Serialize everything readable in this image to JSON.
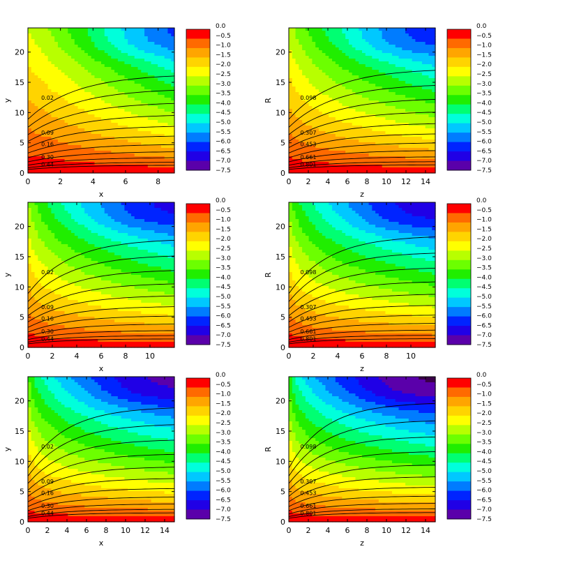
{
  "colorbar": {
    "labels": [
      "0.0",
      "−0.5",
      "−1.0",
      "−1.5",
      "−2.0",
      "−2.5",
      "−3.0",
      "−3.5",
      "−4.0",
      "−4.5",
      "−5.0",
      "−5.5",
      "−6.0",
      "−6.5",
      "−7.0",
      "−7.5"
    ],
    "colors": [
      "#ff0000",
      "#ff6a00",
      "#ffa500",
      "#ffd400",
      "#ffff00",
      "#b8ff00",
      "#6cff00",
      "#20ee00",
      "#00ff72",
      "#00ffdb",
      "#00c8ff",
      "#007cff",
      "#0024ff",
      "#2000e6",
      "#5a00aa",
      "#3a0048"
    ]
  },
  "chart_data": [
    {
      "type": "heatmap",
      "xlabel": "x",
      "ylabel": "y",
      "xlim": [
        0,
        9
      ],
      "ylim": [
        0,
        24
      ],
      "xticks": [
        "0",
        "2",
        "4",
        "6",
        "8"
      ],
      "yticks": [
        "0",
        "5",
        "10",
        "15",
        "20"
      ],
      "contour_labels": [
        "0.02",
        "0.09",
        "0.16",
        "0.30",
        "0.44"
      ],
      "field_min": -6.0
    },
    {
      "type": "heatmap",
      "xlabel": "z",
      "ylabel": "R",
      "xlim": [
        0,
        15
      ],
      "ylim": [
        0,
        24
      ],
      "xticks": [
        "0",
        "2",
        "4",
        "6",
        "8",
        "10",
        "12",
        "14"
      ],
      "yticks": [
        "0",
        "5",
        "10",
        "15",
        "20"
      ],
      "contour_labels": [
        "0.098",
        "0.307",
        "0.453",
        "0.661",
        "0.801"
      ],
      "field_min": -6.3
    },
    {
      "type": "heatmap",
      "xlabel": "x",
      "ylabel": "y",
      "xlim": [
        0,
        12
      ],
      "ylim": [
        0,
        24
      ],
      "xticks": [
        "0",
        "2",
        "4",
        "6",
        "8",
        "10"
      ],
      "yticks": [
        "0",
        "5",
        "10",
        "15",
        "20"
      ],
      "contour_labels": [
        "0.02",
        "0.09",
        "0.16",
        "0.30",
        "0.44"
      ],
      "field_min": -6.6
    },
    {
      "type": "heatmap",
      "xlabel": "z",
      "ylabel": "R",
      "xlim": [
        0,
        12
      ],
      "ylim": [
        0,
        24
      ],
      "xticks": [
        "0",
        "2",
        "4",
        "6",
        "8",
        "10"
      ],
      "yticks": [
        "0",
        "5",
        "10",
        "15",
        "20"
      ],
      "contour_labels": [
        "0.098",
        "0.307",
        "0.453",
        "0.661",
        "0.801"
      ],
      "field_min": -6.8
    },
    {
      "type": "heatmap",
      "xlabel": "x",
      "ylabel": "y",
      "xlim": [
        0,
        15
      ],
      "ylim": [
        0,
        24
      ],
      "xticks": [
        "0",
        "2",
        "4",
        "6",
        "8",
        "10",
        "12",
        "14"
      ],
      "yticks": [
        "0",
        "5",
        "10",
        "15",
        "20"
      ],
      "contour_labels": [
        "0.02",
        "0.09",
        "0.16",
        "0.30",
        "0.44"
      ],
      "field_min": -7.1
    },
    {
      "type": "heatmap",
      "xlabel": "z",
      "ylabel": "R",
      "xlim": [
        0,
        15
      ],
      "ylim": [
        0,
        24
      ],
      "xticks": [
        "0",
        "2",
        "4",
        "6",
        "8",
        "10",
        "12",
        "14"
      ],
      "yticks": [
        "0",
        "5",
        "10",
        "15",
        "20"
      ],
      "contour_labels": [
        "0.098",
        "0.307",
        "0.453",
        "0.661",
        "0.801"
      ],
      "field_min": -7.5
    }
  ]
}
